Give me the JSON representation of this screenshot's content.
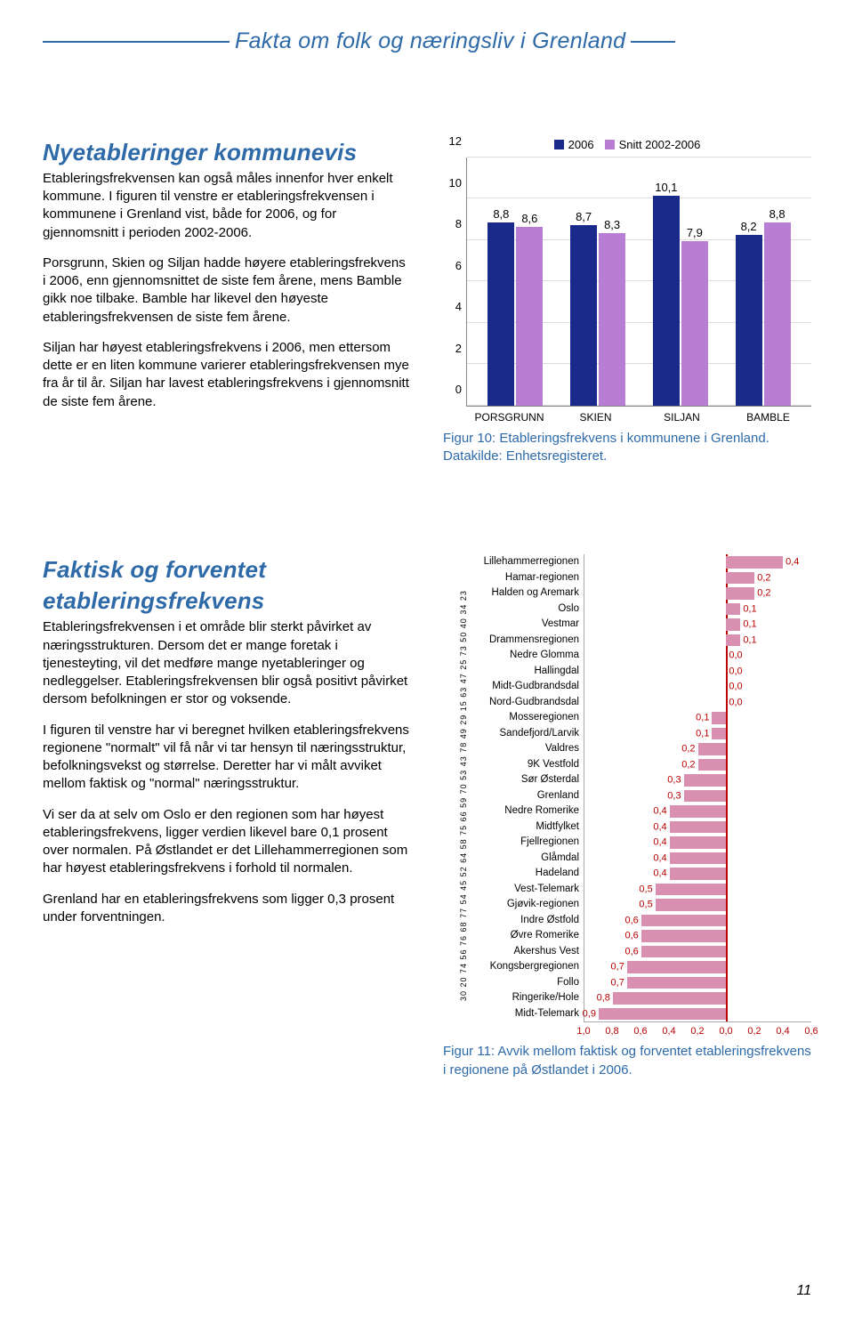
{
  "header": {
    "title": "Fakta om folk og næringsliv i Grenland"
  },
  "section1": {
    "heading": "Nyetableringer kommunevis",
    "p1": "Etableringsfrekvensen kan også måles innenfor hver enkelt kommune. I figuren til venstre er etableringsfrekvensen i kommunene i Grenland vist, både for 2006, og for gjennomsnitt i perioden 2002-2006.",
    "p2": "Porsgrunn, Skien og Siljan hadde høyere etableringsfrekvens i 2006, enn gjennomsnittet de siste fem årene, mens Bamble gikk noe tilbake. Bamble har likevel den høyeste etableringsfrekvensen de siste fem årene.",
    "p3": "Siljan har høyest etableringsfrekvens i 2006, men ettersom dette er en liten kommune varierer etableringsfrekvensen mye fra år til år. Siljan har lavest etableringsfrekvens i gjennomsnitt de siste fem årene.",
    "chart": {
      "legend": [
        {
          "label": "2006",
          "color": "#1a2a8a"
        },
        {
          "label": "Snitt 2002-2006",
          "color": "#b77ed4"
        }
      ],
      "ymax": 12,
      "ystep": 2,
      "categories": [
        "PORSGRUNN",
        "SKIEN",
        "SILJAN",
        "BAMBLE"
      ],
      "series": [
        {
          "color": "#1a2a8a",
          "values": [
            8.8,
            8.7,
            10.1,
            8.2
          ],
          "labels": [
            "8,8",
            "8,7",
            "10,1",
            "8,2"
          ]
        },
        {
          "color": "#b77ed4",
          "values": [
            8.6,
            8.3,
            7.9,
            8.8
          ],
          "labels": [
            "8,6",
            "8,3",
            "7,9",
            "8,8"
          ]
        }
      ],
      "caption": "Figur 10: Etableringsfrekvens i kommunene i Grenland. Datakilde: Enhetsregisteret."
    }
  },
  "section2": {
    "heading": "Faktisk og forventet etableringsfrekvens",
    "p1": "Etableringsfrekvensen i et område blir sterkt påvirket av næringsstrukturen. Dersom det er mange foretak i tjenesteyting, vil det medføre mange nyetableringer og nedleggelser. Etableringsfrekvensen blir også positivt påvirket dersom befolkningen er stor og voksende.",
    "p2": "I figuren til venstre har vi beregnet hvilken etableringsfrekvens regionene \"normalt\" vil få når vi tar hensyn til næringsstruktur, befolkningsvekst og størrelse. Deretter har vi målt avviket mellom faktisk og \"normal\" næringsstruktur.",
    "p3": "Vi ser da at selv om Oslo er den regionen som har høyest etableringsfrekvens, ligger verdien likevel bare 0,1 prosent over normalen. På Østlandet er det Lillehammerregionen som har høyest etableringsfrekvens i forhold til normalen.",
    "p4": "Grenland har en etableringsfrekvens som ligger 0,3 prosent under forventningen.",
    "hbar": {
      "xmin": -1.0,
      "xmax": 0.6,
      "ticks": [
        "1,0",
        "0,8",
        "0,6",
        "0,4",
        "0,2",
        "0,0",
        "0,2",
        "0,4",
        "0,6"
      ],
      "tick_vals": [
        -1.0,
        -0.8,
        -0.6,
        -0.4,
        -0.2,
        0.0,
        0.2,
        0.4,
        0.6
      ],
      "bar_color_pos": "#d98fb0",
      "bar_color_neg": "#d98fb0",
      "side_index": "30 20 74 56 76 68 77 54 45 52 64 58 75 66 59 70 53 43 78 49 29 15 63 47 25 73 50 40 34 23",
      "rows": [
        {
          "label": "Lillehammerregionen",
          "value": 0.4,
          "vlabel": "0,4"
        },
        {
          "label": "Hamar-regionen",
          "value": 0.2,
          "vlabel": "0,2"
        },
        {
          "label": "Halden og Aremark",
          "value": 0.2,
          "vlabel": "0,2"
        },
        {
          "label": "Oslo",
          "value": 0.1,
          "vlabel": "0,1"
        },
        {
          "label": "Vestmar",
          "value": 0.1,
          "vlabel": "0,1"
        },
        {
          "label": "Drammensregionen",
          "value": 0.1,
          "vlabel": "0,1"
        },
        {
          "label": "Nedre Glomma",
          "value": 0.0,
          "vlabel": "0,0"
        },
        {
          "label": "Hallingdal",
          "value": 0.0,
          "vlabel": "0,0"
        },
        {
          "label": "Midt-Gudbrandsdal",
          "value": -0.0,
          "vlabel": "0,0"
        },
        {
          "label": "Nord-Gudbrandsdal",
          "value": -0.0,
          "vlabel": "0,0"
        },
        {
          "label": "Mosseregionen",
          "value": -0.1,
          "vlabel": "0,1"
        },
        {
          "label": "Sandefjord/Larvik",
          "value": -0.1,
          "vlabel": "0,1"
        },
        {
          "label": "Valdres",
          "value": -0.2,
          "vlabel": "0,2"
        },
        {
          "label": "9K Vestfold",
          "value": -0.2,
          "vlabel": "0,2"
        },
        {
          "label": "Sør Østerdal",
          "value": -0.3,
          "vlabel": "0,3"
        },
        {
          "label": "Grenland",
          "value": -0.3,
          "vlabel": "0,3"
        },
        {
          "label": "Nedre Romerike",
          "value": -0.4,
          "vlabel": "0,4"
        },
        {
          "label": "Midtfylket",
          "value": -0.4,
          "vlabel": "0,4"
        },
        {
          "label": "Fjellregionen",
          "value": -0.4,
          "vlabel": "0,4"
        },
        {
          "label": "Glåmdal",
          "value": -0.4,
          "vlabel": "0,4"
        },
        {
          "label": "Hadeland",
          "value": -0.4,
          "vlabel": "0,4"
        },
        {
          "label": "Vest-Telemark",
          "value": -0.5,
          "vlabel": "0,5"
        },
        {
          "label": "Gjøvik-regionen",
          "value": -0.5,
          "vlabel": "0,5"
        },
        {
          "label": "Indre Østfold",
          "value": -0.6,
          "vlabel": "0,6"
        },
        {
          "label": "Øvre Romerike",
          "value": -0.6,
          "vlabel": "0,6"
        },
        {
          "label": "Akershus Vest",
          "value": -0.6,
          "vlabel": "0,6"
        },
        {
          "label": "Kongsbergregionen",
          "value": -0.7,
          "vlabel": "0,7"
        },
        {
          "label": "Follo",
          "value": -0.7,
          "vlabel": "0,7"
        },
        {
          "label": "Ringerike/Hole",
          "value": -0.8,
          "vlabel": "0,8"
        },
        {
          "label": "Midt-Telemark",
          "value": -0.9,
          "vlabel": "0,9"
        }
      ],
      "caption": "Figur 11: Avvik mellom faktisk og forventet etableringsfrekvens i regionene på Østlandet i 2006."
    }
  },
  "pagenum": "11"
}
